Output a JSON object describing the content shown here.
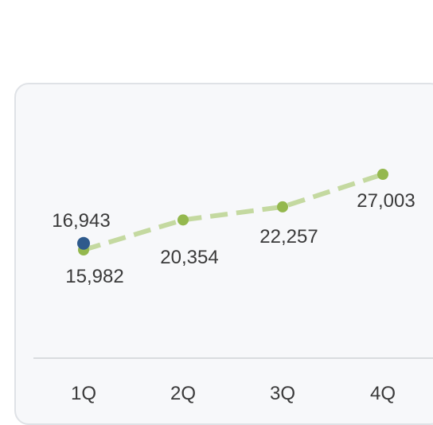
{
  "chart_data": {
    "type": "line",
    "categories": [
      "1Q",
      "2Q",
      "3Q",
      "4Q"
    ],
    "series": [
      {
        "values": [
          15982,
          20354,
          22257,
          27003
        ],
        "color": "#94b84e",
        "line_color": "#c4d9a0",
        "dashed": true
      },
      {
        "values": [
          16943,
          null,
          null,
          null
        ],
        "color": "#2e5a8c"
      }
    ],
    "value_labels": {
      "main": [
        "15,982",
        "20,354",
        "22,257",
        "27,003"
      ],
      "highlight": [
        "16,943"
      ]
    },
    "grid": false,
    "legend": "none",
    "title": "",
    "xlabel": "",
    "ylabel": ""
  }
}
